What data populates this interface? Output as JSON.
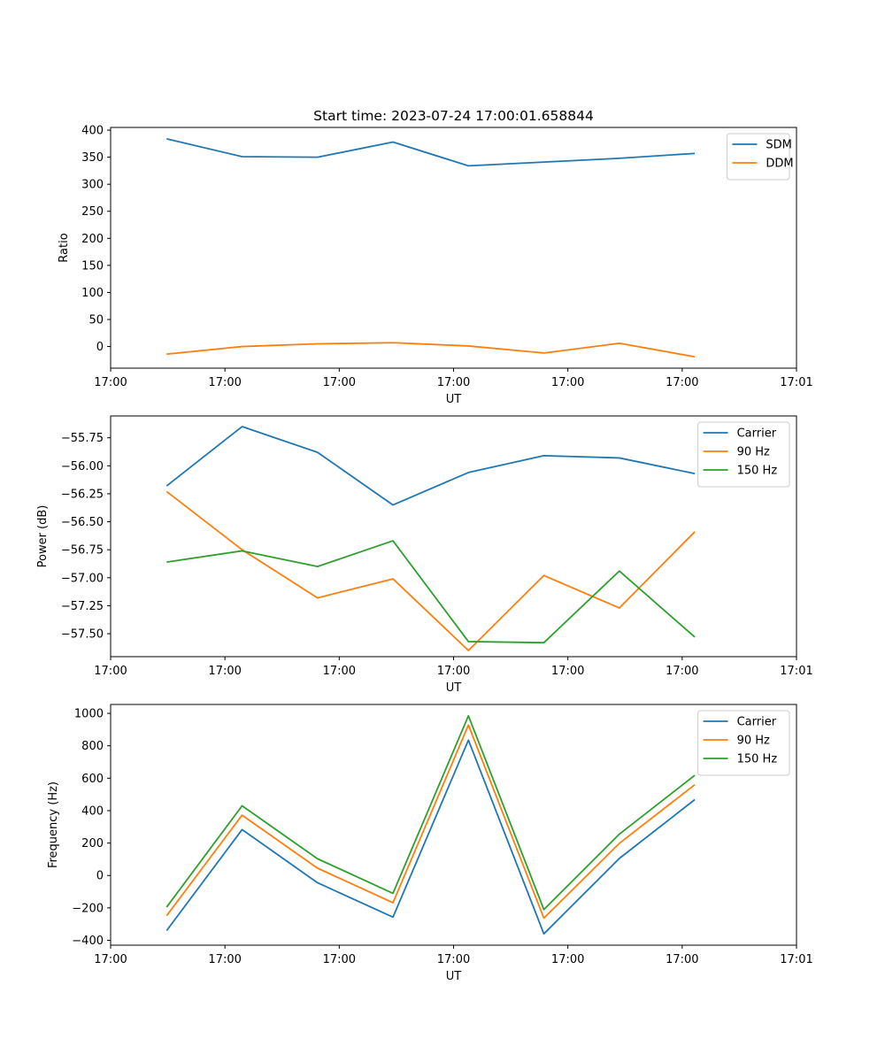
{
  "figure_title": "Start time: 2023-07-24 17:00:01.658844",
  "chart_data": [
    {
      "type": "line",
      "id": "ratio",
      "xlabel": "UT",
      "ylabel": "Ratio",
      "xlim": [
        0,
        6.0
      ],
      "x_ticks": [
        0,
        1,
        2,
        3,
        4,
        5,
        6
      ],
      "x_tick_labels": [
        "17:00",
        "17:00",
        "17:00",
        "17:00",
        "17:00",
        "17:00",
        "17:01"
      ],
      "ylim": [
        -40,
        405
      ],
      "y_ticks": [
        0,
        50,
        100,
        150,
        200,
        250,
        300,
        350,
        400
      ],
      "y_tick_labels": [
        "0",
        "50",
        "100",
        "150",
        "200",
        "250",
        "300",
        "350",
        "400"
      ],
      "x": [
        0.49,
        1.15,
        1.81,
        2.47,
        3.13,
        3.79,
        4.45,
        5.11
      ],
      "series": [
        {
          "name": "SDM",
          "color": "#1f77b4",
          "values": [
            384,
            351,
            350,
            378,
            334,
            341,
            348,
            357
          ]
        },
        {
          "name": "DDM",
          "color": "#ff7f0e",
          "values": [
            -14,
            0,
            5,
            7,
            1,
            -12,
            6,
            -19
          ]
        }
      ],
      "legend": "top-right"
    },
    {
      "type": "line",
      "id": "power",
      "xlabel": "UT",
      "ylabel": "Power (dB)",
      "xlim": [
        0,
        6.0
      ],
      "x_ticks": [
        0,
        1,
        2,
        3,
        4,
        5,
        6
      ],
      "x_tick_labels": [
        "17:00",
        "17:00",
        "17:00",
        "17:00",
        "17:00",
        "17:00",
        "17:01"
      ],
      "ylim": [
        -57.705,
        -55.555
      ],
      "y_ticks": [
        -57.5,
        -57.25,
        -57.0,
        -56.75,
        -56.5,
        -56.25,
        -56.0,
        -55.75
      ],
      "y_tick_labels": [
        "−57.50",
        "−57.25",
        "−57.00",
        "−56.75",
        "−56.50",
        "−56.25",
        "−56.00",
        "−55.75"
      ],
      "x": [
        0.49,
        1.15,
        1.81,
        2.47,
        3.13,
        3.79,
        4.45,
        5.11
      ],
      "series": [
        {
          "name": "Carrier",
          "color": "#1f77b4",
          "values": [
            -56.18,
            -55.65,
            -55.88,
            -56.35,
            -56.06,
            -55.91,
            -55.93,
            -56.07
          ]
        },
        {
          "name": "90 Hz",
          "color": "#ff7f0e",
          "values": [
            -56.23,
            -56.75,
            -57.18,
            -57.01,
            -57.65,
            -56.98,
            -57.27,
            -56.59
          ]
        },
        {
          "name": "150 Hz",
          "color": "#2ca02c",
          "values": [
            -56.86,
            -56.76,
            -56.9,
            -56.67,
            -57.57,
            -57.58,
            -56.94,
            -57.53
          ]
        }
      ],
      "legend": "top-right"
    },
    {
      "type": "line",
      "id": "frequency",
      "xlabel": "UT",
      "ylabel": "Frequency (Hz)",
      "xlim": [
        0,
        6.0
      ],
      "x_ticks": [
        0,
        1,
        2,
        3,
        4,
        5,
        6
      ],
      "x_tick_labels": [
        "17:00",
        "17:00",
        "17:00",
        "17:00",
        "17:00",
        "17:00",
        "17:01"
      ],
      "ylim": [
        -430,
        1055
      ],
      "y_ticks": [
        -400,
        -200,
        0,
        200,
        400,
        600,
        800,
        1000
      ],
      "y_tick_labels": [
        "−400",
        "−200",
        "0",
        "200",
        "400",
        "600",
        "800",
        "1000"
      ],
      "x": [
        0.49,
        1.15,
        1.81,
        2.47,
        3.13,
        3.79,
        4.45,
        5.11
      ],
      "series": [
        {
          "name": "Carrier",
          "color": "#1f77b4",
          "values": [
            -340,
            283,
            -45,
            -257,
            835,
            -360,
            105,
            468
          ]
        },
        {
          "name": "90 Hz",
          "color": "#ff7f0e",
          "values": [
            -248,
            372,
            45,
            -168,
            928,
            -263,
            198,
            560
          ]
        },
        {
          "name": "150 Hz",
          "color": "#2ca02c",
          "values": [
            -195,
            430,
            103,
            -110,
            985,
            -210,
            255,
            618
          ]
        }
      ],
      "legend": "top-right"
    }
  ]
}
